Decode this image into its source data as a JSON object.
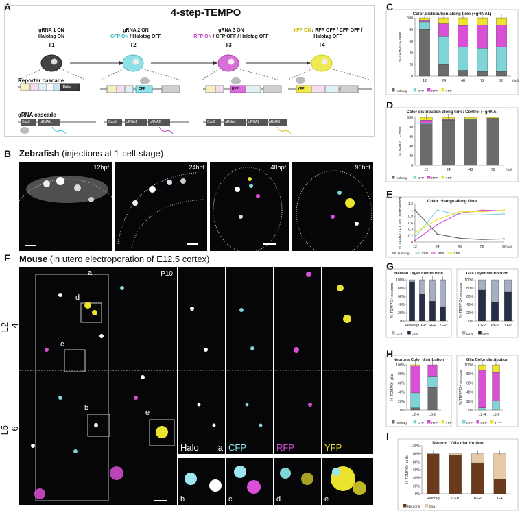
{
  "panels": {
    "A": {
      "letter": "A",
      "title": "4-step-TEMPO",
      "steps": [
        {
          "on": "gRNA 1 ON",
          "sub": "Halotag ON",
          "t": "T1"
        },
        {
          "on": "gRNA 2 ON",
          "sub_color": "CFP ON",
          "sub": " / Halotag OFF",
          "t": "T2"
        },
        {
          "on": "gRNA 3 ON",
          "sub_color": "RFP ON",
          "sub": " / CFP OFF / Halotag OFF",
          "t": "T3"
        },
        {
          "on": "",
          "sub_color": "YFP ON",
          "sub": " / RFP OFF / CFP OFF /",
          "sub2": "Halotag OFF",
          "t": "T4"
        }
      ],
      "reporter_label": "Reporter cascade",
      "grna_label": "gRNA cascade",
      "boxes": {
        "halo": "Halo",
        "cfp": "CFP",
        "rfp": "RFP",
        "yfp": "YFP",
        "cas9": "Cas9",
        "g1": "gRNA1",
        "g2": "gRNA2",
        "g3": "gRNA3"
      }
    },
    "B": {
      "letter": "B",
      "title_bold": "Zebrafish",
      "title_rest": " (injections at 1-cell-stage)",
      "times": [
        "12hpf",
        "24hpf",
        "48hpf",
        "96hpf"
      ]
    },
    "F": {
      "letter": "F",
      "title_bold": "Mouse",
      "title_rest": " (in utero electroporation of E12.5 cortex)",
      "age": "P10",
      "layers": [
        "L2-4",
        "L5-6"
      ],
      "roi": [
        "a",
        "b",
        "c",
        "d",
        "e"
      ],
      "channels": [
        {
          "name": "Halo",
          "letter": "a"
        },
        {
          "name": "CFP",
          "letter": ""
        },
        {
          "name": "RFP",
          "letter": ""
        },
        {
          "name": "YFP",
          "letter": ""
        }
      ],
      "zooms": [
        "b",
        "c",
        "d",
        "e"
      ]
    }
  },
  "colors": {
    "halotag": "#6b6b6b",
    "cfp": "#7fd4d8",
    "rfp": "#d94fd6",
    "yfp": "#ece32e",
    "l24": "#a6aec2",
    "l56": "#262f45",
    "neurons": "#6b3a1c",
    "glia": "#e8c9a6"
  },
  "chart_data": [
    {
      "panel": "C",
      "type": "bar",
      "stacked": true,
      "title": "Color distribution along time (+gRNA1)",
      "categories": [
        "12",
        "24",
        "48",
        "72",
        "96"
      ],
      "x_unit": "(hpf)",
      "ylabel": "% TEMPO + cells",
      "ylim": [
        0,
        100
      ],
      "yticks": [
        0,
        20,
        40,
        60,
        80,
        100
      ],
      "series": [
        {
          "name": "Halotag",
          "values": [
            80,
            20,
            10,
            8,
            8
          ]
        },
        {
          "name": "CFP",
          "values": [
            13,
            48,
            40,
            40,
            42
          ]
        },
        {
          "name": "RFP",
          "values": [
            3,
            22,
            37,
            40,
            38
          ]
        },
        {
          "name": "YFP",
          "values": [
            4,
            10,
            13,
            12,
            12
          ]
        }
      ]
    },
    {
      "panel": "D",
      "type": "bar",
      "stacked": true,
      "title": "Color distribution along time: Control (- gRNA)",
      "categories": [
        "12",
        "24",
        "48",
        "72"
      ],
      "x_unit": "(hpf)",
      "ylabel": "% TEMPO + cells",
      "ylim": [
        0,
        100
      ],
      "yticks": [
        0,
        20,
        40,
        60,
        80,
        100
      ],
      "series": [
        {
          "name": "Halotag",
          "values": [
            86,
            94,
            95,
            98
          ]
        },
        {
          "name": "CFP",
          "values": [
            2,
            1,
            1,
            0
          ]
        },
        {
          "name": "RFP",
          "values": [
            6,
            1,
            1,
            0
          ]
        },
        {
          "name": "YFP",
          "values": [
            6,
            4,
            3,
            2
          ]
        }
      ]
    },
    {
      "panel": "E",
      "type": "line",
      "title": "Color change along time",
      "x": [
        "12",
        "24",
        "48",
        "72",
        "96"
      ],
      "x_unit": "(hpf)",
      "ylabel": "% TEMPO + Cells (normalized)",
      "ylim": [
        0,
        1.2
      ],
      "yticks": [
        0,
        0.2,
        0.4,
        0.6,
        0.8,
        1.0,
        1.2
      ],
      "series": [
        {
          "name": "Halotag",
          "values": [
            1.0,
            0.25,
            0.12,
            0.08,
            0.1
          ]
        },
        {
          "name": "CFP",
          "values": [
            0.15,
            1.0,
            0.85,
            0.85,
            0.88
          ]
        },
        {
          "name": "RFP",
          "values": [
            0.05,
            0.55,
            0.9,
            1.0,
            0.98
          ]
        },
        {
          "name": "YFP",
          "values": [
            0.3,
            0.7,
            0.95,
            0.95,
            1.0
          ]
        }
      ]
    },
    {
      "panel": "G1",
      "type": "bar",
      "stacked": true,
      "title": "Neuron Layer distribution",
      "categories": [
        "Halotag",
        "CFP",
        "RFP",
        "YFP"
      ],
      "ylabel": "% TEMPO+ neurons",
      "ylim": [
        0,
        100
      ],
      "yticks": [
        "0%",
        "20%",
        "40%",
        "60%",
        "80%",
        "100%"
      ],
      "series": [
        {
          "name": "L5-6",
          "values": [
            95,
            65,
            48,
            35
          ]
        },
        {
          "name": "L2-4",
          "values": [
            5,
            35,
            52,
            65
          ]
        }
      ]
    },
    {
      "panel": "G2",
      "type": "bar",
      "stacked": true,
      "title": "Glia Layer distribution",
      "categories": [
        "CFP",
        "RFP",
        "YFP"
      ],
      "ylabel": "% TEMPO+ neurons",
      "ylim": [
        0,
        100
      ],
      "yticks": [
        "0%",
        "20%",
        "40%",
        "60%",
        "80%",
        "100%"
      ],
      "series": [
        {
          "name": "L5-6",
          "values": [
            75,
            45,
            70
          ]
        },
        {
          "name": "L2-4",
          "values": [
            25,
            55,
            30
          ]
        }
      ]
    },
    {
      "panel": "H1",
      "type": "bar",
      "stacked": true,
      "title": "Neurons Color distribution",
      "categories": [
        "L2-4",
        "L5-6"
      ],
      "ylabel": "% TEMPO+ glia",
      "ylim": [
        0,
        100
      ],
      "yticks": [
        "0%",
        "20%",
        "40%",
        "60%",
        "80%",
        "100%"
      ],
      "series": [
        {
          "name": "halotag",
          "values": [
            5,
            50
          ]
        },
        {
          "name": "CFP",
          "values": [
            33,
            25
          ]
        },
        {
          "name": "RFP",
          "values": [
            60,
            25
          ]
        },
        {
          "name": "YFP",
          "values": [
            2,
            0
          ]
        }
      ]
    },
    {
      "panel": "H2",
      "type": "bar",
      "stacked": true,
      "title": "Glia Color distribution",
      "categories": [
        "L2-4",
        "L5-6"
      ],
      "ylabel": "% TEMPO+ neurons",
      "ylim": [
        0,
        100
      ],
      "yticks": [
        "0%",
        "20%",
        "40%",
        "60%",
        "80%",
        "100%"
      ],
      "series": [
        {
          "name": "CFP",
          "values": [
            5,
            20
          ]
        },
        {
          "name": "RFP",
          "values": [
            83,
            63
          ]
        },
        {
          "name": "YFP",
          "values": [
            12,
            17
          ]
        }
      ]
    },
    {
      "panel": "I",
      "type": "bar",
      "stacked": true,
      "title": "Neuron / Glia distribution",
      "categories": [
        "Halotag",
        "CFP",
        "RFP",
        "YFP"
      ],
      "ylabel": "% TEMPO+ cells",
      "ylim": [
        0,
        120
      ],
      "yticks": [
        "0%",
        "20%",
        "40%",
        "60%",
        "80%",
        "100%",
        "120%"
      ],
      "series": [
        {
          "name": "Neurons",
          "values": [
            100,
            97,
            77,
            37
          ]
        },
        {
          "name": "Glia",
          "values": [
            0,
            3,
            23,
            63
          ]
        }
      ]
    }
  ],
  "panel_letters": {
    "C": "C",
    "D": "D",
    "E": "E",
    "G": "G",
    "H": "H",
    "I": "I"
  }
}
